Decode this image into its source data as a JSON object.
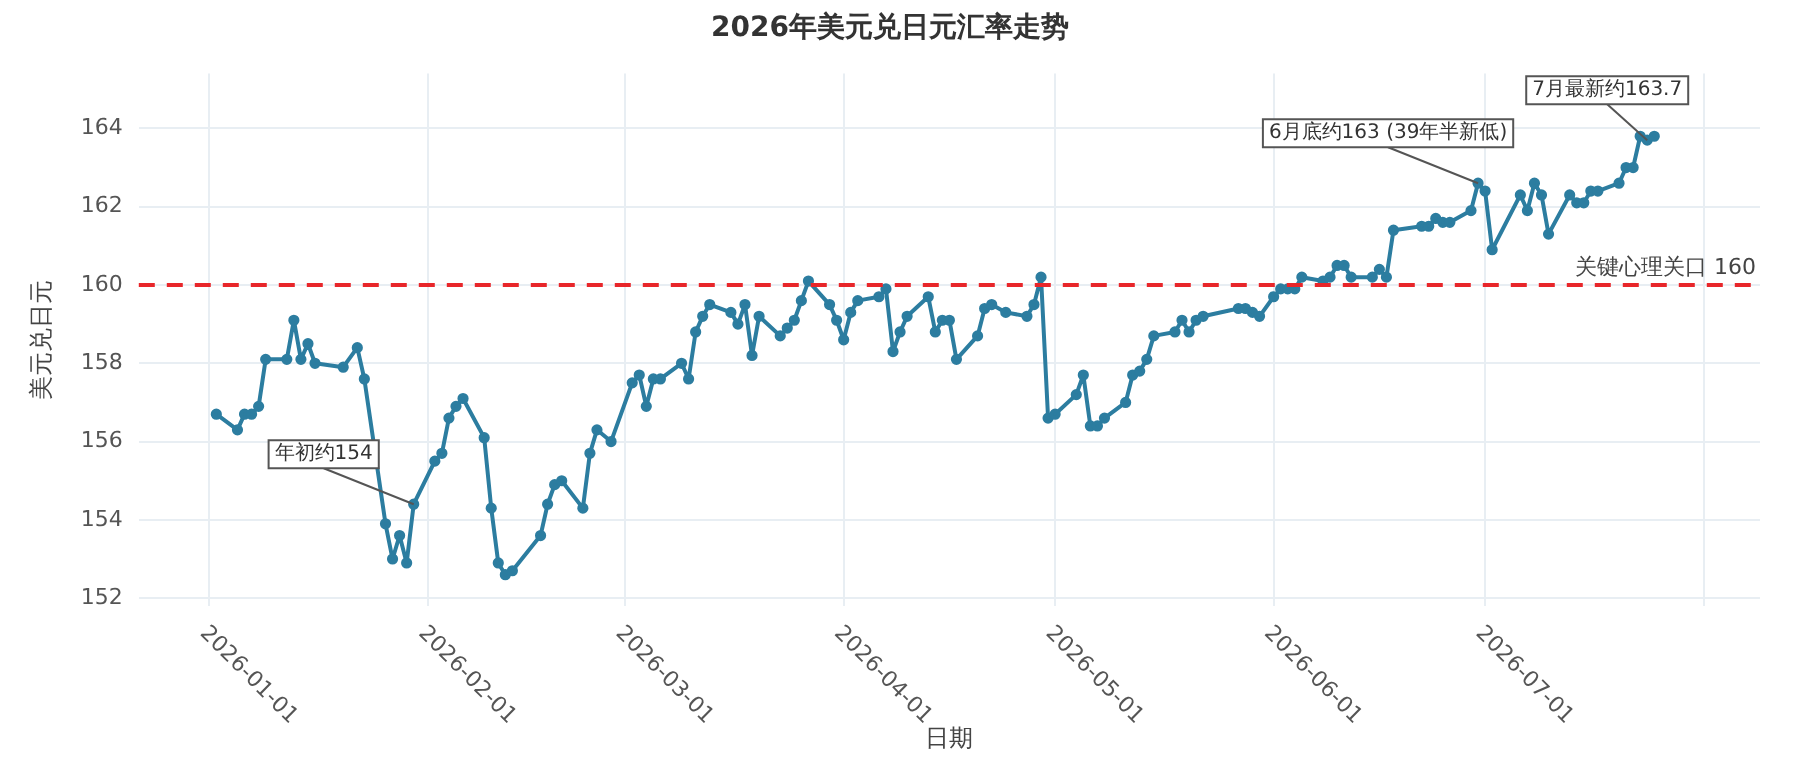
{
  "chart_data": {
    "type": "line",
    "title": "2026年美元兑日元汇率走势",
    "xlabel": "日期",
    "ylabel": "美元兑日元",
    "x": [
      "2026-01-02",
      "2026-01-05",
      "2026-01-06",
      "2026-01-07",
      "2026-01-08",
      "2026-01-09",
      "2026-01-12",
      "2026-01-13",
      "2026-01-14",
      "2026-01-15",
      "2026-01-16",
      "2026-01-20",
      "2026-01-22",
      "2026-01-23",
      "2026-01-26",
      "2026-01-27",
      "2026-01-28",
      "2026-01-29",
      "2026-01-30",
      "2026-02-02",
      "2026-02-03",
      "2026-02-04",
      "2026-02-05",
      "2026-02-06",
      "2026-02-09",
      "2026-02-10",
      "2026-02-11",
      "2026-02-12",
      "2026-02-13",
      "2026-02-17",
      "2026-02-18",
      "2026-02-19",
      "2026-02-20",
      "2026-02-23",
      "2026-02-24",
      "2026-02-25",
      "2026-02-27",
      "2026-03-02",
      "2026-03-03",
      "2026-03-04",
      "2026-03-05",
      "2026-03-06",
      "2026-03-09",
      "2026-03-10",
      "2026-03-11",
      "2026-03-12",
      "2026-03-13",
      "2026-03-16",
      "2026-03-17",
      "2026-03-18",
      "2026-03-19",
      "2026-03-20",
      "2026-03-23",
      "2026-03-24",
      "2026-03-25",
      "2026-03-26",
      "2026-03-27",
      "2026-03-30",
      "2026-03-31",
      "2026-04-01",
      "2026-04-02",
      "2026-04-03",
      "2026-04-06",
      "2026-04-07",
      "2026-04-08",
      "2026-04-09",
      "2026-04-10",
      "2026-04-13",
      "2026-04-14",
      "2026-04-15",
      "2026-04-16",
      "2026-04-17",
      "2026-04-20",
      "2026-04-21",
      "2026-04-22",
      "2026-04-24",
      "2026-04-27",
      "2026-04-28",
      "2026-04-29",
      "2026-04-30",
      "2026-05-01",
      "2026-05-04",
      "2026-05-05",
      "2026-05-06",
      "2026-05-07",
      "2026-05-08",
      "2026-05-11",
      "2026-05-12",
      "2026-05-13",
      "2026-05-14",
      "2026-05-15",
      "2026-05-18",
      "2026-05-19",
      "2026-05-20",
      "2026-05-21",
      "2026-05-22",
      "2026-05-27",
      "2026-05-28",
      "2026-05-29",
      "2026-05-30",
      "2026-06-01",
      "2026-06-02",
      "2026-06-03",
      "2026-06-04",
      "2026-06-05",
      "2026-06-08",
      "2026-06-09",
      "2026-06-10",
      "2026-06-11",
      "2026-06-12",
      "2026-06-15",
      "2026-06-16",
      "2026-06-17",
      "2026-06-18",
      "2026-06-22",
      "2026-06-23",
      "2026-06-24",
      "2026-06-25",
      "2026-06-26",
      "2026-06-29",
      "2026-06-30",
      "2026-07-01",
      "2026-07-02",
      "2026-07-06",
      "2026-07-07",
      "2026-07-08",
      "2026-07-09",
      "2026-07-10",
      "2026-07-13",
      "2026-07-14",
      "2026-07-15",
      "2026-07-16",
      "2026-07-17",
      "2026-07-20",
      "2026-07-21",
      "2026-07-22",
      "2026-07-23",
      "2026-07-24",
      "2026-07-25"
    ],
    "series": [
      {
        "color": "#2c7da0",
        "values": [
          156.7,
          156.3,
          156.7,
          156.7,
          156.9,
          158.1,
          158.1,
          159.1,
          158.1,
          158.5,
          158.0,
          157.9,
          158.4,
          157.6,
          153.9,
          153.0,
          153.6,
          152.9,
          154.4,
          155.5,
          155.7,
          156.6,
          156.9,
          157.1,
          156.1,
          154.3,
          152.9,
          152.6,
          152.7,
          153.6,
          154.4,
          154.9,
          155.0,
          154.3,
          155.7,
          156.3,
          156.0,
          157.5,
          157.7,
          156.9,
          157.6,
          157.6,
          158.0,
          157.6,
          158.8,
          159.2,
          159.5,
          159.3,
          159.0,
          159.5,
          158.2,
          159.2,
          158.7,
          158.9,
          159.1,
          159.6,
          160.1,
          159.5,
          159.1,
          158.6,
          159.3,
          159.6,
          159.7,
          159.9,
          158.3,
          158.8,
          159.2,
          159.7,
          158.8,
          159.1,
          159.1,
          158.1,
          158.7,
          159.4,
          159.5,
          159.3,
          159.2,
          159.5,
          160.2,
          156.6,
          156.7,
          157.2,
          157.7,
          156.4,
          156.4,
          156.6,
          157.0,
          157.7,
          157.8,
          158.1,
          158.7,
          158.8,
          159.1,
          158.8,
          159.1,
          159.2,
          159.4,
          159.4,
          159.3,
          159.2,
          159.7,
          159.9,
          159.9,
          159.9,
          160.2,
          160.1,
          160.2,
          160.5,
          160.5,
          160.2,
          160.2,
          160.4,
          160.2,
          161.4,
          161.5,
          161.5,
          161.7,
          161.6,
          161.6,
          161.9,
          162.6,
          162.4,
          160.9,
          162.3,
          161.9,
          162.6,
          162.3,
          161.3,
          162.3,
          162.1,
          162.1,
          162.4,
          162.4,
          162.6,
          163.0,
          163.0,
          163.8,
          163.7,
          163.8
        ]
      }
    ],
    "xlim": [
      "2025-12-22",
      "2026-08-09"
    ],
    "xticks": [
      "2026-01-01",
      "2026-02-01",
      "2026-03-01",
      "2026-04-01",
      "2026-05-01",
      "2026-06-01",
      "2026-07-01",
      {
        "value": "2026-08-01",
        "label": null
      }
    ],
    "ylim": [
      151.8,
      165.4
    ],
    "yticks": [
      152,
      154,
      156,
      158,
      160,
      162,
      164
    ],
    "ref_lines": [
      {
        "axis": "y",
        "value": 160,
        "label": "关键心理关口 160",
        "color": "#e8262a",
        "line_style": "dashed"
      }
    ],
    "annotations": [
      {
        "text": "年初约154",
        "x": "2026-01-30",
        "y": 154.4
      },
      {
        "text": "6月底约163 (39年半新低)",
        "x": "2026-06-30",
        "y": 162.6
      },
      {
        "text": "7月最新约163.7",
        "x": "2026-07-24",
        "y": 163.7
      }
    ],
    "grid": true,
    "legend": false,
    "marker": "circle",
    "line_style": "solid"
  }
}
